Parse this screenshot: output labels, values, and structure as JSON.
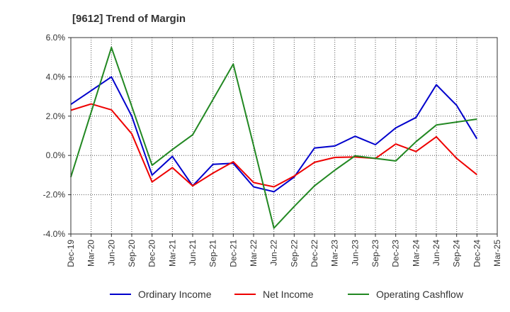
{
  "chart_data": {
    "type": "line",
    "title": "[9612]  Trend of Margin",
    "xlabel": "",
    "ylabel": "",
    "categories": [
      "Dec-19",
      "Mar-20",
      "Jun-20",
      "Sep-20",
      "Dec-20",
      "Mar-21",
      "Jun-21",
      "Sep-21",
      "Dec-21",
      "Mar-22",
      "Jun-22",
      "Sep-22",
      "Dec-22",
      "Mar-23",
      "Jun-23",
      "Sep-23",
      "Dec-23",
      "Mar-24",
      "Jun-24",
      "Sep-24",
      "Dec-24",
      "Mar-25"
    ],
    "ylim": [
      -4.0,
      6.0
    ],
    "yticks": [
      -4.0,
      -2.0,
      0.0,
      2.0,
      4.0,
      6.0
    ],
    "ytick_labels": [
      "-4.0%",
      "-2.0%",
      "0.0%",
      "2.0%",
      "4.0%",
      "6.0%"
    ],
    "grid": true,
    "legend_position": "bottom",
    "series": [
      {
        "name": "Ordinary Income",
        "color": "#0000cc",
        "values": [
          2.6,
          3.3,
          4.0,
          2.0,
          -1.0,
          -0.05,
          -1.55,
          -0.45,
          -0.4,
          -1.6,
          -1.85,
          -1.1,
          0.38,
          0.48,
          0.98,
          0.55,
          1.4,
          1.93,
          3.6,
          2.55,
          0.85,
          null
        ]
      },
      {
        "name": "Net Income",
        "color": "#ee0000",
        "values": [
          2.3,
          2.62,
          2.32,
          1.1,
          -1.35,
          -0.62,
          -1.55,
          -0.9,
          -0.32,
          -1.38,
          -1.6,
          -1.05,
          -0.35,
          -0.1,
          -0.08,
          -0.15,
          0.58,
          0.2,
          0.95,
          -0.15,
          -0.98,
          null
        ]
      },
      {
        "name": "Operating Cashflow",
        "color": "#228822",
        "values": [
          -1.1,
          2.2,
          5.5,
          2.5,
          -0.5,
          0.3,
          1.05,
          2.85,
          4.65,
          0.5,
          -3.7,
          -2.6,
          -1.55,
          -0.75,
          -0.02,
          -0.15,
          -0.28,
          0.7,
          1.55,
          1.7,
          1.85,
          null
        ]
      }
    ]
  }
}
